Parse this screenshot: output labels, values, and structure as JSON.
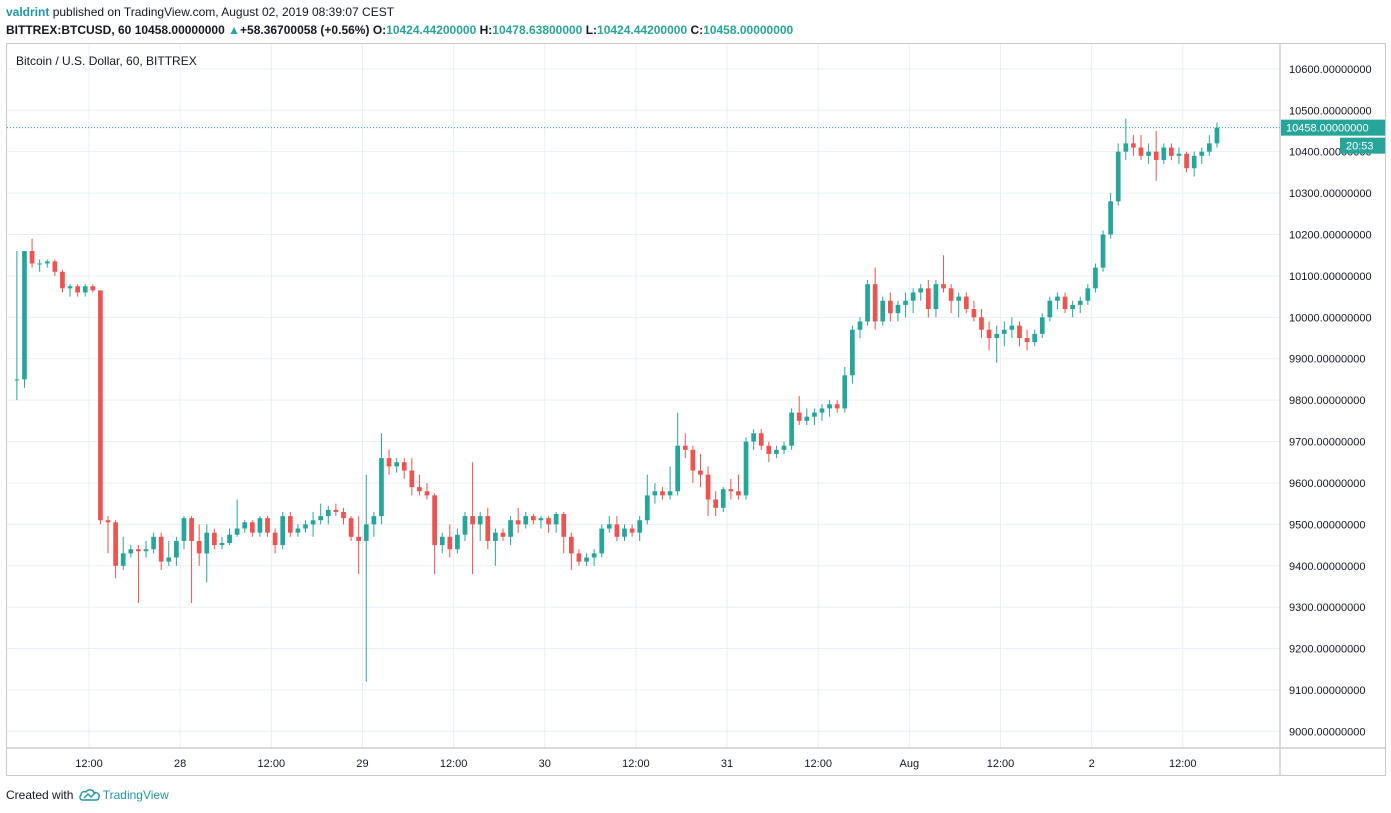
{
  "header": {
    "publisher": "valdrint",
    "published_text": "published on TradingView.com, August 02, 2019 08:39:07 CEST",
    "symbol": "BITTREX:BTCUSD, 60",
    "last_price": "10458.00000000",
    "change": "+58.36700058 (+0.56%)",
    "open_label": "O:",
    "open": "10424.44200000",
    "high_label": "H:",
    "high": "10478.63800000",
    "low_label": "L:",
    "low": "10424.44200000",
    "close_label": "C:",
    "close": "10458.00000000"
  },
  "footer": {
    "created_with": "Created with",
    "brand": "TradingView"
  },
  "colors": {
    "up": "#26a69a",
    "down": "#ef5350",
    "grid": "#e8f0f5",
    "axis_text": "#131722",
    "price_line": "#26a69a"
  },
  "icons": {
    "change_direction": "triangle-up-icon",
    "footer_logo": "tradingview-cloud-icon"
  },
  "chart_data": {
    "type": "candlestick",
    "title": "Bitcoin / U.S. Dollar, 60, BITTREX",
    "ylim": [
      8960,
      10660
    ],
    "y_ticks": [
      9000,
      9100,
      9200,
      9300,
      9400,
      9500,
      9600,
      9700,
      9800,
      9900,
      10000,
      10100,
      10200,
      10300,
      10400,
      10500,
      10600
    ],
    "y_tick_labels": [
      "9000.00000000",
      "9100.00000000",
      "9200.00000000",
      "9300.00000000",
      "9400.00000000",
      "9500.00000000",
      "9600.00000000",
      "9700.00000000",
      "9800.00000000",
      "9900.00000000",
      "10000.00000000",
      "10100.00000000",
      "10200.00000000",
      "10300.00000000",
      "10400.00000000",
      "10500.00000000",
      "10600.00000000"
    ],
    "x_ticks": [
      {
        "label": "12:00",
        "bar": 9.5
      },
      {
        "label": "28",
        "bar": 21.5
      },
      {
        "label": "12:00",
        "bar": 33.5
      },
      {
        "label": "29",
        "bar": 45.5
      },
      {
        "label": "12:00",
        "bar": 57.5
      },
      {
        "label": "30",
        "bar": 69.5
      },
      {
        "label": "12:00",
        "bar": 81.5
      },
      {
        "label": "31",
        "bar": 93.5
      },
      {
        "label": "12:00",
        "bar": 105.5
      },
      {
        "label": "Aug",
        "bar": 117.5
      },
      {
        "label": "12:00",
        "bar": 129.5
      },
      {
        "label": "2",
        "bar": 141.5
      },
      {
        "label": "12:00",
        "bar": 153.5
      }
    ],
    "x_range": [
      -1.3,
      166.3
    ],
    "last_price": 10458,
    "last_price_label": "10458.00000000",
    "countdown": "20:53",
    "candles": [
      [
        9850,
        10160,
        9800,
        9850
      ],
      [
        9850,
        10160,
        9830,
        10160
      ],
      [
        10160,
        10190,
        10120,
        10130
      ],
      [
        10130,
        10140,
        10110,
        10130
      ],
      [
        10130,
        10140,
        10120,
        10135
      ],
      [
        10135,
        10140,
        10100,
        10110
      ],
      [
        10110,
        10115,
        10060,
        10070
      ],
      [
        10070,
        10080,
        10050,
        10075
      ],
      [
        10075,
        10080,
        10050,
        10060
      ],
      [
        10060,
        10080,
        10050,
        10075
      ],
      [
        10075,
        10080,
        10060,
        10065
      ],
      [
        10065,
        10065,
        9500,
        9510
      ],
      [
        9510,
        9520,
        9430,
        9505
      ],
      [
        9505,
        9510,
        9370,
        9400
      ],
      [
        9400,
        9470,
        9390,
        9430
      ],
      [
        9430,
        9450,
        9420,
        9440
      ],
      [
        9440,
        9450,
        9310,
        9435
      ],
      [
        9435,
        9460,
        9420,
        9440
      ],
      [
        9440,
        9480,
        9430,
        9470
      ],
      [
        9470,
        9480,
        9390,
        9410
      ],
      [
        9410,
        9460,
        9400,
        9420
      ],
      [
        9420,
        9470,
        9400,
        9460
      ],
      [
        9460,
        9520,
        9440,
        9515
      ],
      [
        9515,
        9520,
        9310,
        9460
      ],
      [
        9460,
        9500,
        9400,
        9430
      ],
      [
        9430,
        9500,
        9360,
        9480
      ],
      [
        9480,
        9490,
        9440,
        9450
      ],
      [
        9450,
        9470,
        9440,
        9455
      ],
      [
        9455,
        9490,
        9450,
        9475
      ],
      [
        9475,
        9560,
        9470,
        9490
      ],
      [
        9490,
        9510,
        9480,
        9505
      ],
      [
        9505,
        9510,
        9470,
        9480
      ],
      [
        9480,
        9520,
        9470,
        9515
      ],
      [
        9515,
        9520,
        9470,
        9480
      ],
      [
        9480,
        9490,
        9430,
        9450
      ],
      [
        9450,
        9530,
        9440,
        9520
      ],
      [
        9520,
        9530,
        9470,
        9480
      ],
      [
        9480,
        9500,
        9470,
        9490
      ],
      [
        9490,
        9510,
        9480,
        9500
      ],
      [
        9500,
        9530,
        9470,
        9510
      ],
      [
        9510,
        9550,
        9500,
        9520
      ],
      [
        9520,
        9545,
        9500,
        9535
      ],
      [
        9535,
        9550,
        9520,
        9530
      ],
      [
        9530,
        9540,
        9500,
        9515
      ],
      [
        9515,
        9520,
        9460,
        9470
      ],
      [
        9470,
        9520,
        9380,
        9460
      ],
      [
        9460,
        9620,
        9120,
        9500
      ],
      [
        9500,
        9530,
        9470,
        9520
      ],
      [
        9520,
        9720,
        9500,
        9660
      ],
      [
        9660,
        9680,
        9620,
        9640
      ],
      [
        9640,
        9660,
        9625,
        9650
      ],
      [
        9650,
        9660,
        9610,
        9630
      ],
      [
        9630,
        9660,
        9570,
        9590
      ],
      [
        9590,
        9620,
        9570,
        9580
      ],
      [
        9580,
        9600,
        9560,
        9570
      ],
      [
        9570,
        9575,
        9380,
        9450
      ],
      [
        9450,
        9480,
        9430,
        9470
      ],
      [
        9470,
        9500,
        9420,
        9440
      ],
      [
        9440,
        9490,
        9430,
        9475
      ],
      [
        9475,
        9530,
        9460,
        9520
      ],
      [
        9520,
        9650,
        9380,
        9500
      ],
      [
        9500,
        9530,
        9460,
        9520
      ],
      [
        9520,
        9540,
        9440,
        9460
      ],
      [
        9460,
        9490,
        9400,
        9480
      ],
      [
        9480,
        9490,
        9460,
        9470
      ],
      [
        9470,
        9520,
        9450,
        9510
      ],
      [
        9510,
        9540,
        9480,
        9500
      ],
      [
        9500,
        9530,
        9490,
        9520
      ],
      [
        9520,
        9525,
        9500,
        9510
      ],
      [
        9510,
        9520,
        9490,
        9515
      ],
      [
        9515,
        9520,
        9480,
        9500
      ],
      [
        9500,
        9530,
        9480,
        9525
      ],
      [
        9525,
        9530,
        9430,
        9470
      ],
      [
        9470,
        9480,
        9390,
        9430
      ],
      [
        9430,
        9440,
        9400,
        9410
      ],
      [
        9410,
        9430,
        9400,
        9420
      ],
      [
        9420,
        9440,
        9400,
        9430
      ],
      [
        9430,
        9500,
        9420,
        9490
      ],
      [
        9490,
        9520,
        9480,
        9500
      ],
      [
        9500,
        9520,
        9460,
        9470
      ],
      [
        9470,
        9500,
        9460,
        9490
      ],
      [
        9490,
        9500,
        9470,
        9480
      ],
      [
        9480,
        9520,
        9460,
        9510
      ],
      [
        9510,
        9620,
        9500,
        9570
      ],
      [
        9570,
        9600,
        9550,
        9580
      ],
      [
        9580,
        9590,
        9560,
        9570
      ],
      [
        9570,
        9640,
        9560,
        9580
      ],
      [
        9580,
        9770,
        9570,
        9690
      ],
      [
        9690,
        9720,
        9660,
        9680
      ],
      [
        9680,
        9690,
        9600,
        9630
      ],
      [
        9630,
        9670,
        9590,
        9620
      ],
      [
        9620,
        9640,
        9520,
        9560
      ],
      [
        9560,
        9580,
        9520,
        9540
      ],
      [
        9540,
        9590,
        9530,
        9585
      ],
      [
        9585,
        9610,
        9560,
        9580
      ],
      [
        9580,
        9620,
        9560,
        9570
      ],
      [
        9570,
        9710,
        9560,
        9700
      ],
      [
        9700,
        9730,
        9680,
        9720
      ],
      [
        9720,
        9730,
        9680,
        9690
      ],
      [
        9690,
        9700,
        9650,
        9670
      ],
      [
        9670,
        9690,
        9660,
        9680
      ],
      [
        9680,
        9700,
        9670,
        9690
      ],
      [
        9690,
        9780,
        9680,
        9770
      ],
      [
        9770,
        9810,
        9740,
        9750
      ],
      [
        9750,
        9780,
        9740,
        9760
      ],
      [
        9760,
        9780,
        9740,
        9770
      ],
      [
        9770,
        9790,
        9750,
        9780
      ],
      [
        9780,
        9800,
        9760,
        9790
      ],
      [
        9790,
        9800,
        9770,
        9780
      ],
      [
        9780,
        9880,
        9770,
        9860
      ],
      [
        9860,
        9980,
        9840,
        9970
      ],
      [
        9970,
        10000,
        9950,
        9990
      ],
      [
        9990,
        10090,
        9980,
        10080
      ],
      [
        10080,
        10120,
        9970,
        9990
      ],
      [
        9990,
        10050,
        9980,
        10040
      ],
      [
        10040,
        10060,
        9990,
        10010
      ],
      [
        10010,
        10040,
        9990,
        10030
      ],
      [
        10030,
        10060,
        10000,
        10040
      ],
      [
        10040,
        10070,
        10010,
        10060
      ],
      [
        10060,
        10080,
        10040,
        10070
      ],
      [
        10070,
        10090,
        10000,
        10020
      ],
      [
        10020,
        10090,
        10000,
        10080
      ],
      [
        10080,
        10150,
        10060,
        10070
      ],
      [
        10070,
        10080,
        10010,
        10040
      ],
      [
        10040,
        10060,
        10000,
        10050
      ],
      [
        10050,
        10060,
        10010,
        10020
      ],
      [
        10020,
        10040,
        9990,
        10000
      ],
      [
        10000,
        10020,
        9950,
        9970
      ],
      [
        9970,
        9990,
        9920,
        9950
      ],
      [
        9950,
        9980,
        9890,
        9960
      ],
      [
        9960,
        9990,
        9930,
        9970
      ],
      [
        9970,
        10000,
        9950,
        9980
      ],
      [
        9980,
        9990,
        9930,
        9950
      ],
      [
        9950,
        9970,
        9920,
        9940
      ],
      [
        9940,
        9970,
        9930,
        9960
      ],
      [
        9960,
        10010,
        9950,
        10000
      ],
      [
        10000,
        10050,
        9990,
        10040
      ],
      [
        10040,
        10060,
        10020,
        10050
      ],
      [
        10050,
        10060,
        10010,
        10020
      ],
      [
        10020,
        10040,
        10000,
        10030
      ],
      [
        10030,
        10050,
        10010,
        10040
      ],
      [
        10040,
        10080,
        10030,
        10070
      ],
      [
        10070,
        10130,
        10060,
        10120
      ],
      [
        10120,
        10210,
        10110,
        10200
      ],
      [
        10200,
        10300,
        10190,
        10280
      ],
      [
        10280,
        10420,
        10270,
        10400
      ],
      [
        10400,
        10480,
        10380,
        10420
      ],
      [
        10420,
        10440,
        10390,
        10410
      ],
      [
        10410,
        10440,
        10380,
        10390
      ],
      [
        10390,
        10420,
        10370,
        10400
      ],
      [
        10400,
        10450,
        10330,
        10380
      ],
      [
        10380,
        10420,
        10370,
        10410
      ],
      [
        10410,
        10420,
        10380,
        10390
      ],
      [
        10390,
        10410,
        10370,
        10395
      ],
      [
        10395,
        10400,
        10350,
        10360
      ],
      [
        10360,
        10400,
        10340,
        10390
      ],
      [
        10390,
        10410,
        10370,
        10400
      ],
      [
        10400,
        10440,
        10390,
        10420
      ],
      [
        10420,
        10470,
        10410,
        10458
      ]
    ]
  }
}
